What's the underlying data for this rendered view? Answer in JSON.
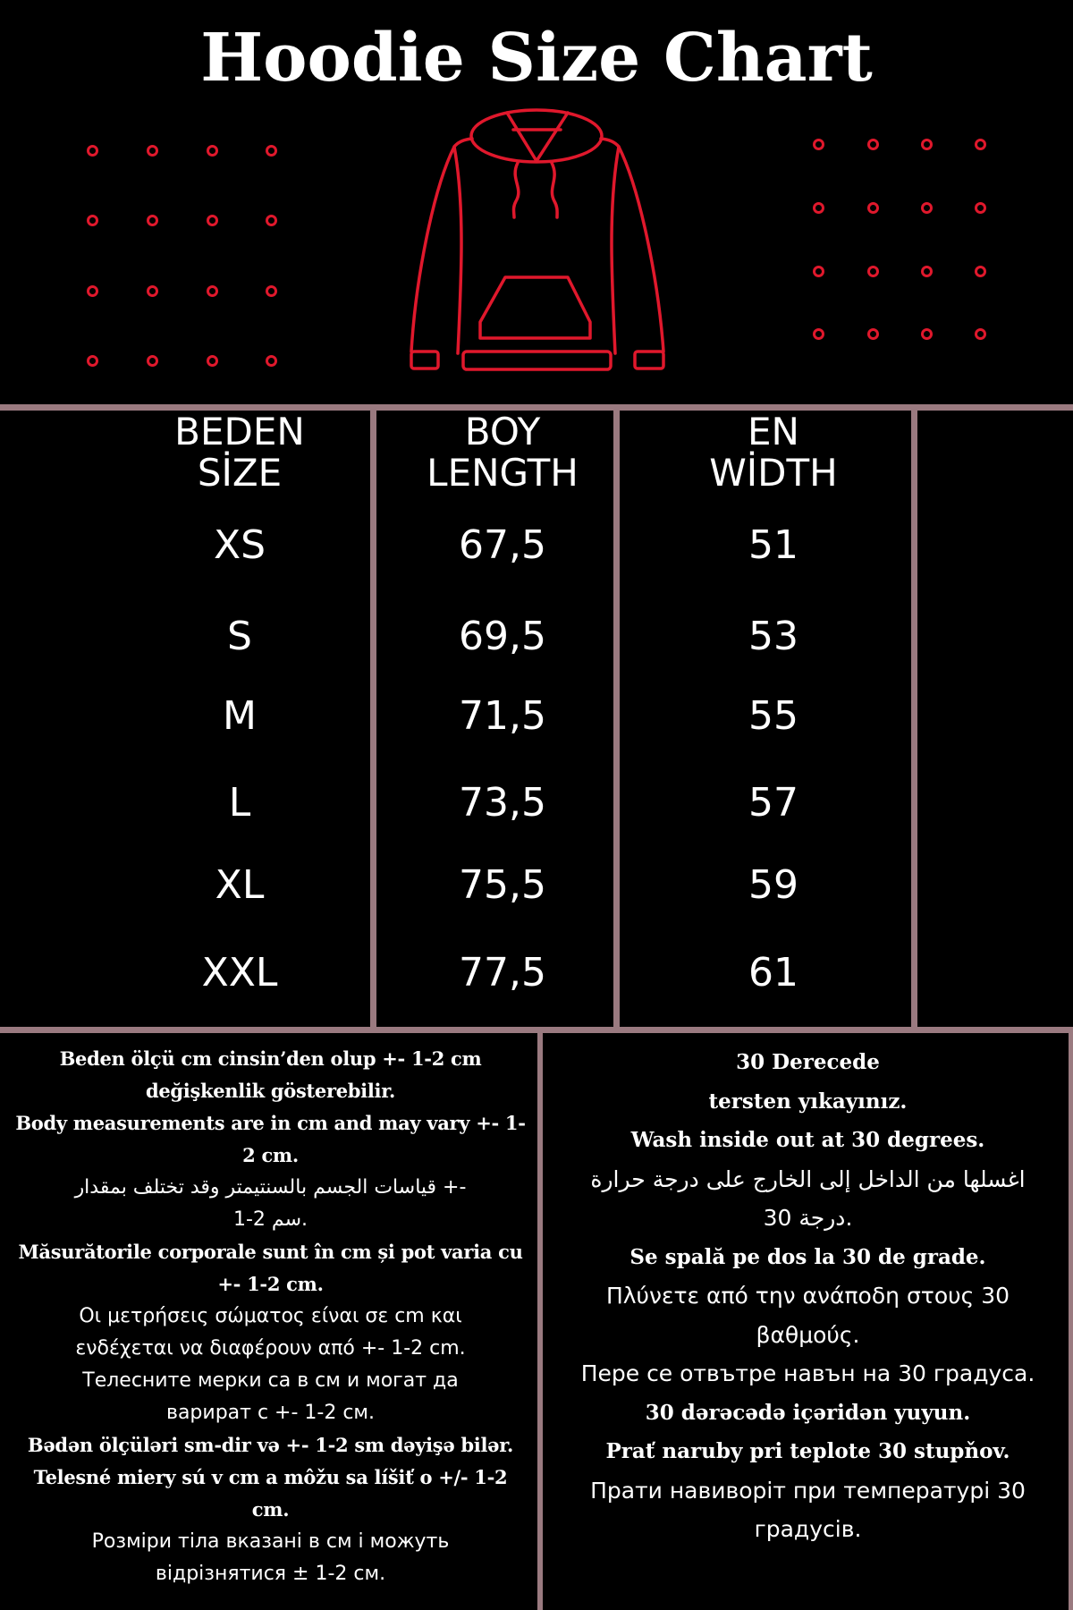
{
  "title": "Hoodie Size Chart",
  "colors": {
    "accent": "#e0182c",
    "divider": "#9a7a80",
    "background": "#000000",
    "text": "#ffffff"
  },
  "icons": {
    "garment": "hoodie-icon",
    "decoration": "circle-dot-grid"
  },
  "table": {
    "headers": [
      {
        "line1": "BEDEN",
        "line2": "SİZE"
      },
      {
        "line1": "BOY",
        "line2": "LENGTH"
      },
      {
        "line1": "EN",
        "line2": "WİDTH"
      }
    ],
    "rows": [
      [
        "XS",
        "67,5",
        "51"
      ],
      [
        "S",
        "69,5",
        "53"
      ],
      [
        "M",
        "71,5",
        "55"
      ],
      [
        "L",
        "73,5",
        "57"
      ],
      [
        "XL",
        "75,5",
        "59"
      ],
      [
        "XXL",
        "77,5",
        "61"
      ]
    ]
  },
  "notes_left": [
    {
      "style": "serif",
      "text": "Beden ölçü cm cinsin’den olup +- 1-2 cm"
    },
    {
      "style": "serif",
      "text": "değişkenlik gösterebilir."
    },
    {
      "style": "serif",
      "text": "Body measurements are in cm and may vary +- 1-"
    },
    {
      "style": "serif",
      "text": "2 cm."
    },
    {
      "style": "sans",
      "text": "قياسات الجسم بالسنتيمتر وقد تختلف بمقدار +-"
    },
    {
      "style": "sans",
      "text": "1-2 سم."
    },
    {
      "style": "serif",
      "text": "Măsurătorile corporale sunt în cm și pot varia cu"
    },
    {
      "style": "serif",
      "text": "+- 1-2 cm."
    },
    {
      "style": "sans",
      "text": "Οι μετρήσεις σώματος είναι σε cm και"
    },
    {
      "style": "sans",
      "text": "ενδέχεται να διαφέρουν από +- 1-2 cm."
    },
    {
      "style": "sans",
      "text": "Телесните мерки са в см и могат да"
    },
    {
      "style": "sans",
      "text": "варират с +- 1-2 см."
    },
    {
      "style": "serif",
      "text": "Bədən ölçüləri sm-dir və +- 1-2 sm dəyişə bilər."
    },
    {
      "style": "serif",
      "text": "Telesné miery sú v cm a môžu sa líšiť o +/- 1-2"
    },
    {
      "style": "serif",
      "text": "cm."
    },
    {
      "style": "sans",
      "text": "Розміри тіла вказані в см і можуть"
    },
    {
      "style": "sans",
      "text": "відрізнятися ± 1-2 см."
    }
  ],
  "notes_right": [
    {
      "style": "serif",
      "text": "30 Derecede"
    },
    {
      "style": "serif",
      "text": "tersten yıkayınız."
    },
    {
      "style": "serif",
      "text": "Wash inside out at 30 degrees."
    },
    {
      "style": "sans",
      "text": "اغسلها من الداخل إلى الخارج على درجة حرارة"
    },
    {
      "style": "sans",
      "text": "30 درجة."
    },
    {
      "style": "serif",
      "text": "Se spală pe dos la 30 de grade."
    },
    {
      "style": "sans",
      "text": "Πλύνετε από την ανάποδη στους 30"
    },
    {
      "style": "sans",
      "text": "βαθμούς."
    },
    {
      "style": "sans",
      "text": "Пере се отвътре навън на 30 градуса."
    },
    {
      "style": "serif",
      "text": "30 dərəcədə içəridən yuyun."
    },
    {
      "style": "serif",
      "text": "Prať naruby pri teplote 30 stupňov."
    },
    {
      "style": "sans",
      "text": "Прати навиворіт при температурі 30"
    },
    {
      "style": "sans",
      "text": "градусів."
    }
  ]
}
